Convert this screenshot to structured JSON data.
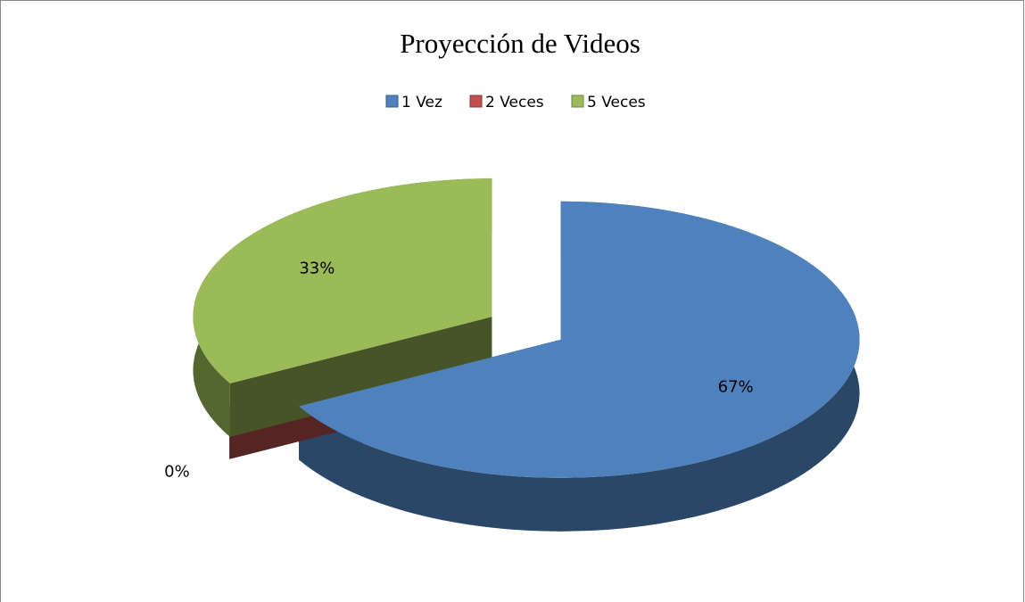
{
  "chart_data": {
    "type": "pie",
    "title": "Proyección de Videos",
    "categories": [
      "1 Vez",
      "2 Veces",
      "5 Veces"
    ],
    "values": [
      67,
      0,
      33
    ],
    "value_labels": [
      "67%",
      "0%",
      "33%"
    ],
    "colors": [
      "#4f81bd",
      "#c0504d",
      "#9bbb59"
    ],
    "legend": "top"
  }
}
